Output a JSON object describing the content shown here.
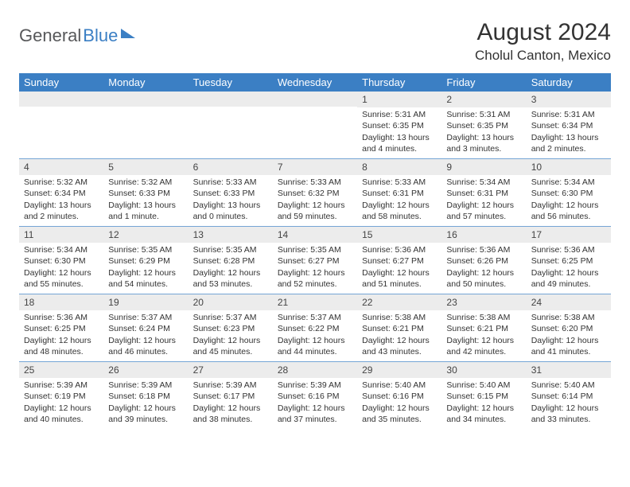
{
  "logo": {
    "part1": "General",
    "part2": "Blue"
  },
  "title": "August 2024",
  "location": "Cholul Canton, Mexico",
  "header_bg": "#3b7fc4",
  "dayNames": [
    "Sunday",
    "Monday",
    "Tuesday",
    "Wednesday",
    "Thursday",
    "Friday",
    "Saturday"
  ],
  "weeks": [
    [
      {
        "date": "",
        "lines": []
      },
      {
        "date": "",
        "lines": []
      },
      {
        "date": "",
        "lines": []
      },
      {
        "date": "",
        "lines": []
      },
      {
        "date": "1",
        "lines": [
          "Sunrise: 5:31 AM",
          "Sunset: 6:35 PM",
          "Daylight: 13 hours and 4 minutes."
        ]
      },
      {
        "date": "2",
        "lines": [
          "Sunrise: 5:31 AM",
          "Sunset: 6:35 PM",
          "Daylight: 13 hours and 3 minutes."
        ]
      },
      {
        "date": "3",
        "lines": [
          "Sunrise: 5:31 AM",
          "Sunset: 6:34 PM",
          "Daylight: 13 hours and 2 minutes."
        ]
      }
    ],
    [
      {
        "date": "4",
        "lines": [
          "Sunrise: 5:32 AM",
          "Sunset: 6:34 PM",
          "Daylight: 13 hours and 2 minutes."
        ]
      },
      {
        "date": "5",
        "lines": [
          "Sunrise: 5:32 AM",
          "Sunset: 6:33 PM",
          "Daylight: 13 hours and 1 minute."
        ]
      },
      {
        "date": "6",
        "lines": [
          "Sunrise: 5:33 AM",
          "Sunset: 6:33 PM",
          "Daylight: 13 hours and 0 minutes."
        ]
      },
      {
        "date": "7",
        "lines": [
          "Sunrise: 5:33 AM",
          "Sunset: 6:32 PM",
          "Daylight: 12 hours and 59 minutes."
        ]
      },
      {
        "date": "8",
        "lines": [
          "Sunrise: 5:33 AM",
          "Sunset: 6:31 PM",
          "Daylight: 12 hours and 58 minutes."
        ]
      },
      {
        "date": "9",
        "lines": [
          "Sunrise: 5:34 AM",
          "Sunset: 6:31 PM",
          "Daylight: 12 hours and 57 minutes."
        ]
      },
      {
        "date": "10",
        "lines": [
          "Sunrise: 5:34 AM",
          "Sunset: 6:30 PM",
          "Daylight: 12 hours and 56 minutes."
        ]
      }
    ],
    [
      {
        "date": "11",
        "lines": [
          "Sunrise: 5:34 AM",
          "Sunset: 6:30 PM",
          "Daylight: 12 hours and 55 minutes."
        ]
      },
      {
        "date": "12",
        "lines": [
          "Sunrise: 5:35 AM",
          "Sunset: 6:29 PM",
          "Daylight: 12 hours and 54 minutes."
        ]
      },
      {
        "date": "13",
        "lines": [
          "Sunrise: 5:35 AM",
          "Sunset: 6:28 PM",
          "Daylight: 12 hours and 53 minutes."
        ]
      },
      {
        "date": "14",
        "lines": [
          "Sunrise: 5:35 AM",
          "Sunset: 6:27 PM",
          "Daylight: 12 hours and 52 minutes."
        ]
      },
      {
        "date": "15",
        "lines": [
          "Sunrise: 5:36 AM",
          "Sunset: 6:27 PM",
          "Daylight: 12 hours and 51 minutes."
        ]
      },
      {
        "date": "16",
        "lines": [
          "Sunrise: 5:36 AM",
          "Sunset: 6:26 PM",
          "Daylight: 12 hours and 50 minutes."
        ]
      },
      {
        "date": "17",
        "lines": [
          "Sunrise: 5:36 AM",
          "Sunset: 6:25 PM",
          "Daylight: 12 hours and 49 minutes."
        ]
      }
    ],
    [
      {
        "date": "18",
        "lines": [
          "Sunrise: 5:36 AM",
          "Sunset: 6:25 PM",
          "Daylight: 12 hours and 48 minutes."
        ]
      },
      {
        "date": "19",
        "lines": [
          "Sunrise: 5:37 AM",
          "Sunset: 6:24 PM",
          "Daylight: 12 hours and 46 minutes."
        ]
      },
      {
        "date": "20",
        "lines": [
          "Sunrise: 5:37 AM",
          "Sunset: 6:23 PM",
          "Daylight: 12 hours and 45 minutes."
        ]
      },
      {
        "date": "21",
        "lines": [
          "Sunrise: 5:37 AM",
          "Sunset: 6:22 PM",
          "Daylight: 12 hours and 44 minutes."
        ]
      },
      {
        "date": "22",
        "lines": [
          "Sunrise: 5:38 AM",
          "Sunset: 6:21 PM",
          "Daylight: 12 hours and 43 minutes."
        ]
      },
      {
        "date": "23",
        "lines": [
          "Sunrise: 5:38 AM",
          "Sunset: 6:21 PM",
          "Daylight: 12 hours and 42 minutes."
        ]
      },
      {
        "date": "24",
        "lines": [
          "Sunrise: 5:38 AM",
          "Sunset: 6:20 PM",
          "Daylight: 12 hours and 41 minutes."
        ]
      }
    ],
    [
      {
        "date": "25",
        "lines": [
          "Sunrise: 5:39 AM",
          "Sunset: 6:19 PM",
          "Daylight: 12 hours and 40 minutes."
        ]
      },
      {
        "date": "26",
        "lines": [
          "Sunrise: 5:39 AM",
          "Sunset: 6:18 PM",
          "Daylight: 12 hours and 39 minutes."
        ]
      },
      {
        "date": "27",
        "lines": [
          "Sunrise: 5:39 AM",
          "Sunset: 6:17 PM",
          "Daylight: 12 hours and 38 minutes."
        ]
      },
      {
        "date": "28",
        "lines": [
          "Sunrise: 5:39 AM",
          "Sunset: 6:16 PM",
          "Daylight: 12 hours and 37 minutes."
        ]
      },
      {
        "date": "29",
        "lines": [
          "Sunrise: 5:40 AM",
          "Sunset: 6:16 PM",
          "Daylight: 12 hours and 35 minutes."
        ]
      },
      {
        "date": "30",
        "lines": [
          "Sunrise: 5:40 AM",
          "Sunset: 6:15 PM",
          "Daylight: 12 hours and 34 minutes."
        ]
      },
      {
        "date": "31",
        "lines": [
          "Sunrise: 5:40 AM",
          "Sunset: 6:14 PM",
          "Daylight: 12 hours and 33 minutes."
        ]
      }
    ]
  ]
}
